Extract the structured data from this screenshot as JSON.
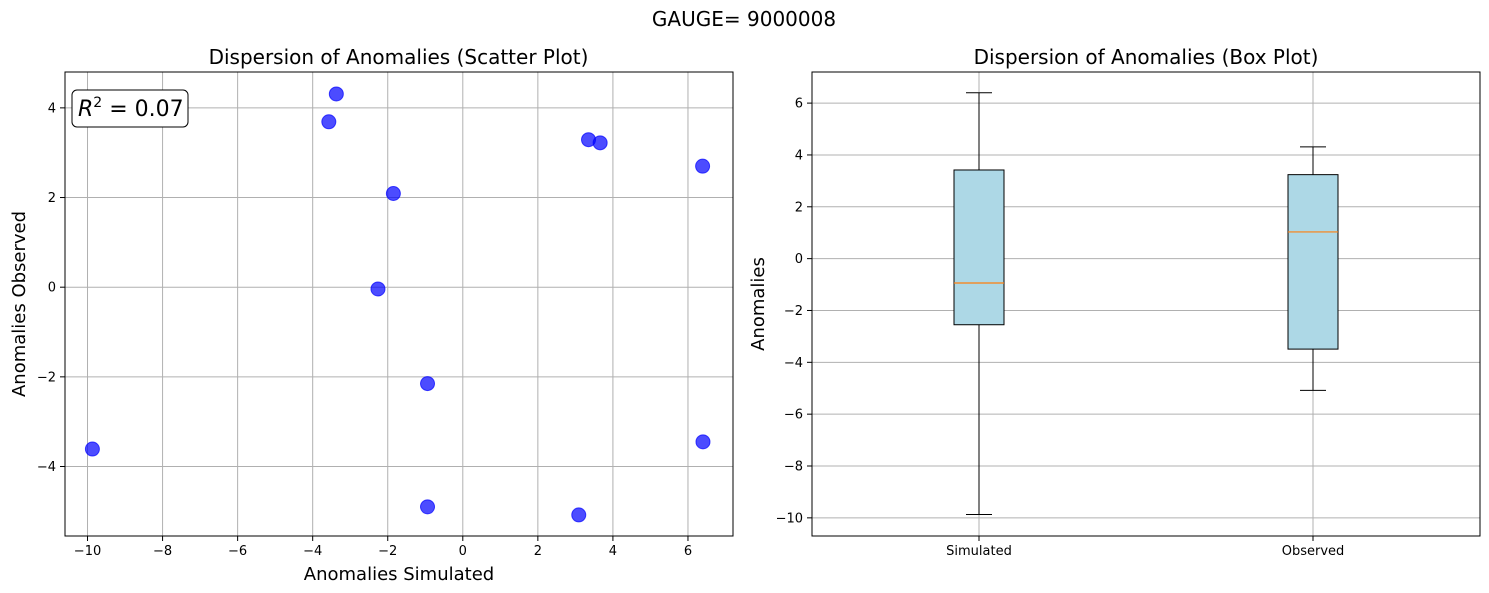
{
  "figure": {
    "suptitle": "GAUGE= 9000008"
  },
  "chart_data": [
    {
      "type": "scatter",
      "title": "Dispersion of Anomalies (Scatter Plot)",
      "xlabel": "Anomalies Simulated",
      "ylabel": "Anomalies Observed",
      "xlim": [
        -10.6,
        7.2
      ],
      "ylim": [
        -5.55,
        4.8
      ],
      "xticks": [
        -10,
        -8,
        -6,
        -4,
        -2,
        0,
        2,
        4,
        6
      ],
      "yticks": [
        -4,
        -2,
        0,
        2,
        4
      ],
      "grid": true,
      "color": "#0000ff",
      "annotation": {
        "r2_label": "R",
        "r2_exp": "2",
        "r2_value": " = 0.07"
      },
      "points": [
        {
          "x": -9.87,
          "y": -3.61
        },
        {
          "x": -3.57,
          "y": 3.69
        },
        {
          "x": -3.37,
          "y": 4.31
        },
        {
          "x": -1.85,
          "y": 2.09
        },
        {
          "x": -2.26,
          "y": -0.04
        },
        {
          "x": -0.94,
          "y": -2.15
        },
        {
          "x": -0.94,
          "y": -4.9
        },
        {
          "x": 3.09,
          "y": -5.08
        },
        {
          "x": 3.35,
          "y": 3.29
        },
        {
          "x": 3.66,
          "y": 3.22
        },
        {
          "x": 6.39,
          "y": 2.7
        },
        {
          "x": 6.4,
          "y": -3.45
        }
      ]
    },
    {
      "type": "box",
      "title": "Dispersion of Anomalies (Box Plot)",
      "ylabel": "Anomalies",
      "ylim": [
        -10.7,
        7.2
      ],
      "yticks": [
        -10,
        -8,
        -6,
        -4,
        -2,
        0,
        2,
        4,
        6
      ],
      "grid": true,
      "box_color": "#add8e6",
      "median_color": "#ff7f0e",
      "categories": [
        "Simulated",
        "Observed"
      ],
      "boxes": [
        {
          "name": "Simulated",
          "min": -9.87,
          "q1": -2.55,
          "median": -0.94,
          "q3": 3.42,
          "max": 6.4
        },
        {
          "name": "Observed",
          "min": -5.08,
          "q1": -3.49,
          "median": 1.03,
          "q3": 3.24,
          "max": 4.31
        }
      ]
    }
  ]
}
